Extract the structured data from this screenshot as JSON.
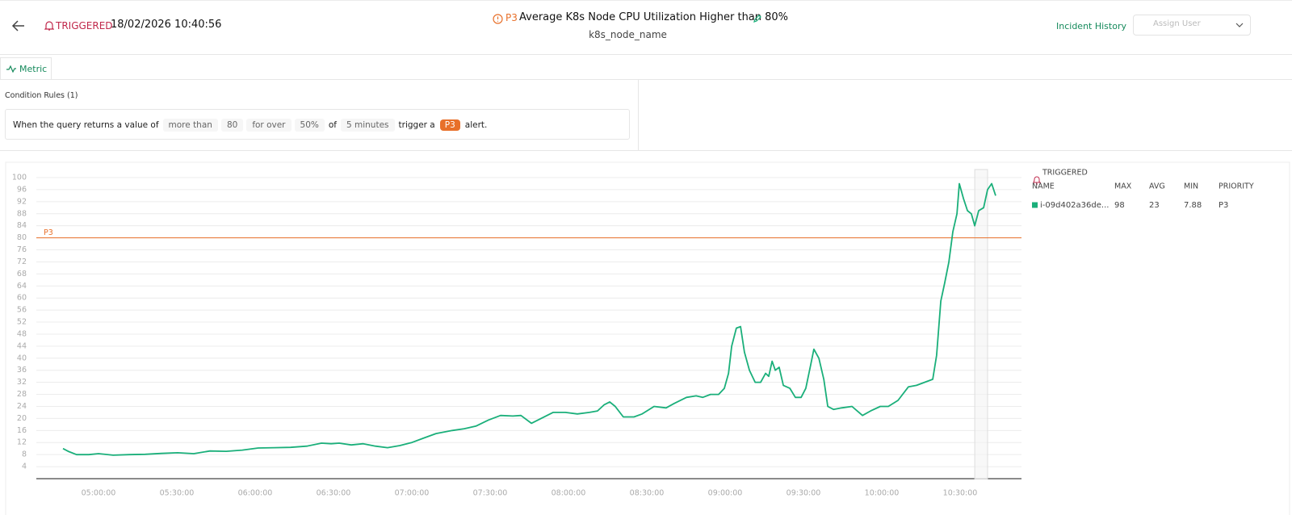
{
  "header": {
    "status": "TRIGGERED",
    "timestamp": "18/02/2026 10:40:56",
    "priority": "P3",
    "title": "Average K8s Node CPU Utilization Higher than 80%",
    "subtitle": "k8s_node_name",
    "incident_history": "Incident History",
    "assign_user": "Assign User"
  },
  "tabs": [
    "Metric"
  ],
  "condition": {
    "heading": "Condition Rules (1)",
    "parts": [
      "When the query returns a value of",
      "more than",
      80,
      "for over",
      "50%",
      "of",
      "5 minutes",
      "trigger a",
      "P3",
      "alert."
    ]
  },
  "chart_data": {
    "type": "line",
    "x": [
      286.4,
      288.6,
      291.6,
      296.3,
      300,
      305.6,
      311.8,
      317.9,
      324.1,
      330.3,
      336.5,
      342.7,
      348.9,
      355.1,
      361.2,
      367.4,
      373.6,
      379.8,
      385.4,
      389.1,
      392.2,
      396.8,
      401.4,
      406.1,
      410.7,
      415.4,
      420,
      424.6,
      429.3,
      435.5,
      440.1,
      444.7,
      449.4,
      454,
      458.7,
      461.8,
      465.8,
      469.5,
      474.1,
      478.8,
      483.4,
      488,
      491.1,
      493.6,
      495.8,
      497.9,
      501,
      505.1,
      508.2,
      512.8,
      517.4,
      520.5,
      525.2,
      528.9,
      531.4,
      534.4,
      537.5,
      539.7,
      541.3,
      542.5,
      544.3,
      545.9,
      547.4,
      549.3,
      551.5,
      553.6,
      555.5,
      556.7,
      558,
      559.2,
      560.7,
      562.3,
      564.8,
      566.9,
      569.1,
      570.9,
      572.8,
      574,
      575.9,
      577.8,
      579.3,
      581.5,
      584.6,
      588.6,
      592.6,
      595.7,
      599.4,
      602.5,
      606.2,
      610.2,
      613.3,
      616.4,
      619.5,
      621,
      622.6,
      624.1,
      625.7,
      627.2,
      628.8,
      629.7,
      631.3,
      632.8,
      634.3,
      635.6,
      637.1,
      639,
      640.5,
      642.1,
      643.6
    ],
    "series": [
      {
        "name": "i-09d402a36de...",
        "color": "#1aaf7a",
        "values": [
          10,
          9,
          8,
          8,
          8.3,
          7.8,
          8,
          8.1,
          8.4,
          8.6,
          8.3,
          9.2,
          9.1,
          9.5,
          10.2,
          10.3,
          10.4,
          10.8,
          11.8,
          11.6,
          11.8,
          11.2,
          11.6,
          10.8,
          10.3,
          11,
          12,
          13.5,
          15,
          16,
          16.6,
          17.5,
          19.5,
          21,
          20.8,
          21,
          18.4,
          20,
          22,
          22,
          21.5,
          22,
          22.5,
          24.5,
          25.5,
          24,
          20.5,
          20.5,
          21.5,
          24,
          23.5,
          25,
          27,
          27.5,
          27,
          28,
          28,
          30,
          35,
          44,
          50,
          50.5,
          42,
          36,
          32,
          32,
          35,
          34,
          39,
          36,
          37,
          31,
          30,
          27,
          27,
          30,
          38,
          43,
          40,
          33,
          24,
          23,
          23.5,
          24,
          21,
          22.5,
          24,
          24,
          26,
          30.5,
          31,
          32,
          33,
          41,
          59,
          65,
          72,
          82,
          88,
          98,
          93,
          89,
          88,
          84,
          89,
          90,
          96,
          98,
          94
        ],
        "stats": [
          98,
          23,
          7.88,
          "P3"
        ]
      }
    ],
    "xlim": [
      276.2,
      653.5
    ],
    "xticks": [
      {
        "value": 300,
        "label": "05:00:00"
      },
      {
        "value": 330,
        "label": "05:30:00"
      },
      {
        "value": 360,
        "label": "06:00:00"
      },
      {
        "value": 390,
        "label": "06:30:00"
      },
      {
        "value": 420,
        "label": "07:00:00"
      },
      {
        "value": 450,
        "label": "07:30:00"
      },
      {
        "value": 480,
        "label": "08:00:00"
      },
      {
        "value": 510,
        "label": "08:30:00"
      },
      {
        "value": 540,
        "label": "09:00:00"
      },
      {
        "value": 570,
        "label": "09:30:00"
      },
      {
        "value": 600,
        "label": "10:00:00"
      },
      {
        "value": 630,
        "label": "10:30:00"
      }
    ],
    "ylim": [
      0,
      100
    ],
    "yticks": [
      4,
      8,
      12,
      16,
      20,
      24,
      28,
      32,
      36,
      40,
      44,
      48,
      52,
      56,
      60,
      64,
      68,
      72,
      76,
      80,
      84,
      88,
      92,
      96,
      100
    ],
    "grid": true,
    "threshold": {
      "value": 80,
      "label": "P3",
      "color": "#e8702a"
    },
    "triggered_range": [
      635.6,
      640.5
    ],
    "legend": {
      "title": "TRIGGERED",
      "columns": [
        "NAME",
        "MAX",
        "AVG",
        "MIN",
        "PRIORITY"
      ]
    }
  }
}
